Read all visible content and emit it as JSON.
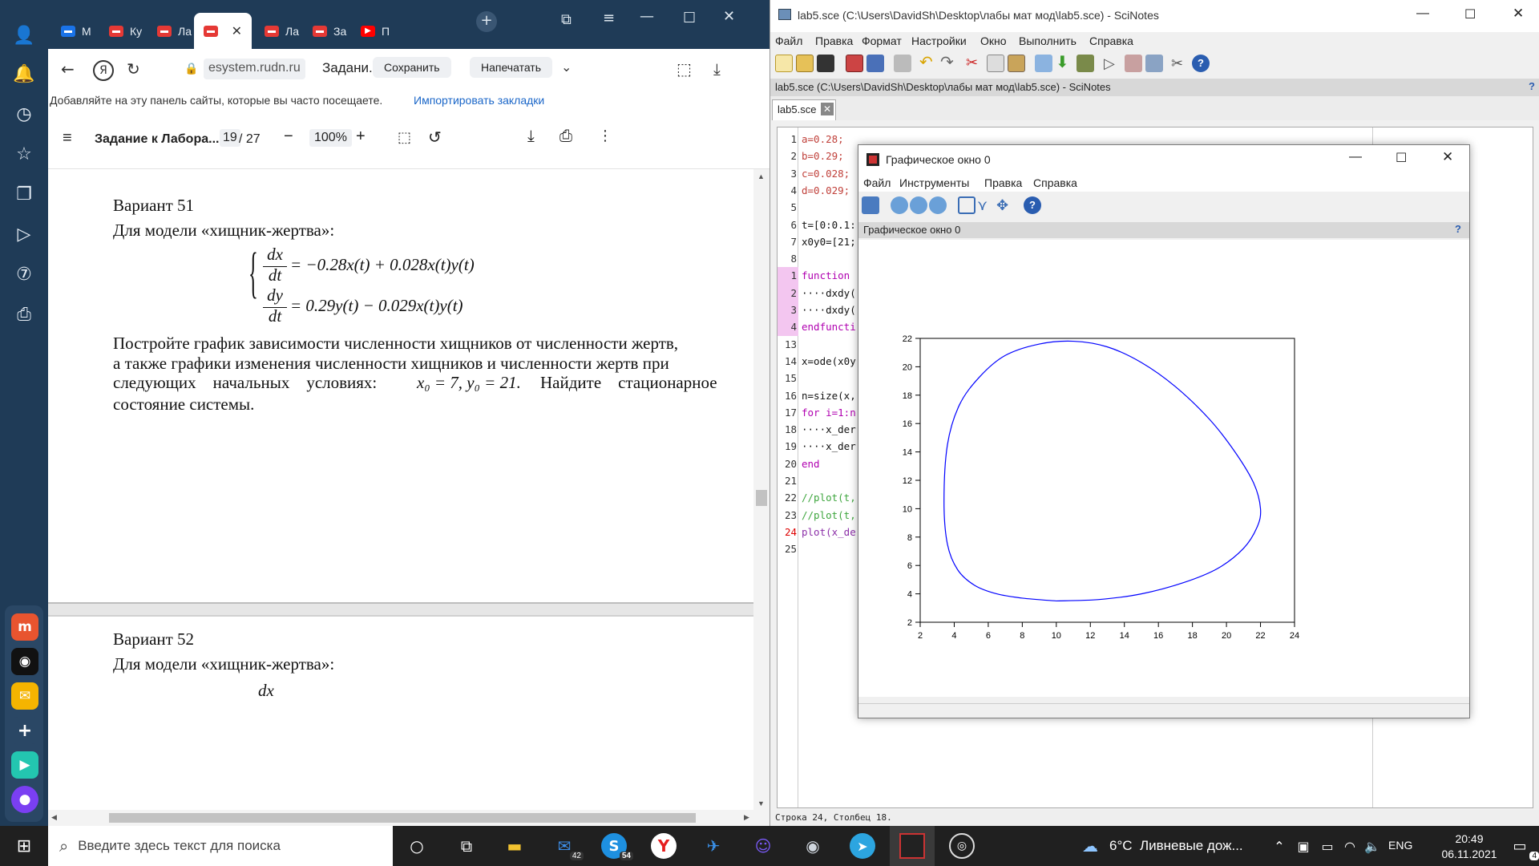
{
  "browser": {
    "tabs": [
      {
        "label": "М",
        "fav_color": "#1a73e8"
      },
      {
        "label": "Ку",
        "fav_color": "#e53935"
      },
      {
        "label": "Ла",
        "fav_color": "#e53935"
      },
      {
        "label": "",
        "fav_color": "#e53935"
      },
      {
        "label": "Ла",
        "fav_color": "#e53935"
      },
      {
        "label": "За",
        "fav_color": "#e53935"
      },
      {
        "label": "П",
        "fav_color": "#ff0000"
      }
    ],
    "address": {
      "domain": "esystem.rudn.ru",
      "title": "Задани..."
    },
    "save_label": "Сохранить",
    "print_label": "Напечатать",
    "bookmarks_hint": "Добавляйте на эту панель сайты, которые вы часто посещаете.",
    "import_link": "Импортировать закладки",
    "pdf": {
      "doc_title": "Задание к Лабора...",
      "page_current": "19",
      "page_total": "/ 27",
      "zoom": "100%"
    }
  },
  "document": {
    "variant51": {
      "heading": "Вариант 51",
      "intro": "Для модели «хищник-жертва»:",
      "eq1_lhs_num": "dx",
      "eq1_lhs_den": "dt",
      "eq1_rhs": "= −0.28x(t) + 0.028x(t)y(t)",
      "eq2_lhs_num": "dy",
      "eq2_lhs_den": "dt",
      "eq2_rhs": "= 0.29y(t) − 0.029x(t)y(t)",
      "task_line1": "Постройте график зависимости численности хищников от численности жертв,",
      "task_line2": "а также графики изменения численности хищников и численности жертв при",
      "task_line3a": "следующих    начальных    условиях:",
      "task_line3b": "x₀ = 7, y₀ = 21.",
      "task_line3c": "Найдите    стационарное",
      "task_line4": "состояние системы."
    },
    "variant52": {
      "heading": "Вариант 52",
      "intro": "Для модели «хищник-жертва»:",
      "eq1_lhs_num": "dx"
    }
  },
  "scinotes": {
    "title": "lab5.sce (C:\\Users\\DavidSh\\Desktop\\лабы мат мод\\lab5.sce) - SciNotes",
    "menu": [
      "Файл",
      "Правка",
      "Формат",
      "Настройки",
      "Окно",
      "Выполнить",
      "Справка"
    ],
    "doc_bar": "lab5.sce (C:\\Users\\DavidSh\\Desktop\\лабы мат мод\\lab5.sce) - SciNotes",
    "tab_label": "lab5.sce",
    "status": "Строка 24, Столбец 18.",
    "lines": [
      {
        "n": "1",
        "code": "a=0.28;"
      },
      {
        "n": "2",
        "code": "b=0.29;"
      },
      {
        "n": "3",
        "code": "c=0.028;"
      },
      {
        "n": "4",
        "code": "d=0.029;"
      },
      {
        "n": "5",
        "code": ""
      },
      {
        "n": "6",
        "code": "t=[0:0.1:"
      },
      {
        "n": "7",
        "code": "x0y0=[21;"
      },
      {
        "n": "8",
        "code": ""
      },
      {
        "n": "1",
        "code": "function"
      },
      {
        "n": "2",
        "code": "····dxdy("
      },
      {
        "n": "3",
        "code": "····dxdy("
      },
      {
        "n": "4",
        "code": "endfuncti"
      },
      {
        "n": "13",
        "code": ""
      },
      {
        "n": "14",
        "code": "x=ode(x0y"
      },
      {
        "n": "15",
        "code": ""
      },
      {
        "n": "16",
        "code": "n=size(x,"
      },
      {
        "n": "17",
        "code": "for i=1:n"
      },
      {
        "n": "18",
        "code": "····x_der"
      },
      {
        "n": "19",
        "code": "····x_der"
      },
      {
        "n": "20",
        "code": "end"
      },
      {
        "n": "21",
        "code": ""
      },
      {
        "n": "22",
        "code": "//plot(t,"
      },
      {
        "n": "23",
        "code": "//plot(t,"
      },
      {
        "n": "24",
        "code": "plot(x_de"
      },
      {
        "n": "25",
        "code": ""
      }
    ]
  },
  "graphic_window": {
    "title": "Графическое окно 0",
    "menu": [
      "Файл",
      "Инструменты",
      "Правка",
      "Справка"
    ],
    "doc_bar": "Графическое окно 0",
    "help_mark": "?"
  },
  "chart_data": {
    "type": "line",
    "title": "",
    "xlabel": "",
    "ylabel": "",
    "xlim": [
      2,
      24
    ],
    "ylim": [
      2,
      22
    ],
    "x_ticks": [
      "2",
      "4",
      "6",
      "8",
      "10",
      "12",
      "14",
      "16",
      "18",
      "20",
      "22",
      "24"
    ],
    "y_ticks": [
      "2",
      "4",
      "6",
      "8",
      "10",
      "12",
      "14",
      "16",
      "18",
      "20",
      "22"
    ],
    "grid": false,
    "series": [
      {
        "color": "#0000ff",
        "x": [
          10.0,
          12.5,
          15.0,
          17.5,
          19.5,
          21.0,
          21.8,
          22.0,
          21.6,
          20.5,
          19.0,
          17.0,
          15.0,
          13.0,
          11.0,
          9.0,
          7.0,
          5.5,
          4.3,
          3.6,
          3.4,
          3.6,
          4.2,
          5.2,
          6.5,
          8.0,
          10.0
        ],
        "y": [
          3.5,
          3.6,
          4.0,
          4.8,
          5.8,
          7.2,
          8.7,
          10.0,
          11.8,
          14.0,
          16.3,
          18.6,
          20.3,
          21.4,
          21.8,
          21.6,
          20.8,
          19.3,
          17.3,
          14.5,
          10.5,
          7.5,
          5.7,
          4.6,
          4.0,
          3.7,
          3.5
        ]
      }
    ]
  },
  "taskbar": {
    "search_placeholder": "Введите здесь текст для поиска",
    "weather": "6°C  Ливневые дож...",
    "lang": "ENG",
    "time": "20:49",
    "date": "06.11.2021",
    "mail_badge": "42",
    "skype_badge": "54",
    "notif_badge": "4"
  }
}
